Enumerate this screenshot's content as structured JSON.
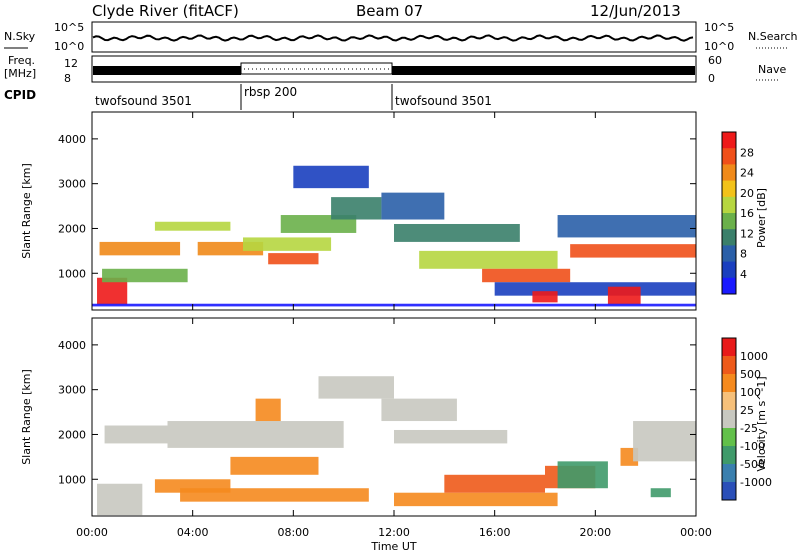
{
  "header": {
    "station": "Clyde River (fitACF)",
    "beam": "Beam 07",
    "date": "12/Jun/2013"
  },
  "strips": {
    "nsky_label": "N.Sky",
    "nsky_ticks": [
      "10^5",
      "10^0"
    ],
    "nsearch_label": "N.Search",
    "nsearch_ticks": [
      "10^5",
      "10^0"
    ],
    "freq_label": "Freq.",
    "freq_unit": "[MHz]",
    "freq_ticks": [
      "12",
      "8"
    ],
    "nave_label": "Nave",
    "nave_ticks": [
      "60",
      "0"
    ],
    "cpid_label": "CPID",
    "cpid_segments": [
      {
        "name": "twofsound 3501",
        "start_h": 0,
        "end_h": 6
      },
      {
        "name": "rbsp 200",
        "start_h": 6,
        "end_h": 12
      },
      {
        "name": "twofsound 3501",
        "start_h": 12,
        "end_h": 24
      }
    ]
  },
  "chart_data": [
    {
      "type": "heatmap",
      "panel": "power",
      "xlabel": "",
      "ylabel": "Slant Range [km]",
      "xlim": [
        0,
        24
      ],
      "ylim": [
        180,
        4600
      ],
      "y_ticks": [
        1000,
        2000,
        3000,
        4000
      ],
      "colorbar_label": "Power [dB]",
      "colorbar_ticks": [
        "28",
        "24",
        "20",
        "16",
        "12",
        "8",
        "4"
      ],
      "colors": [
        "#1a1aff",
        "#1a3fbf",
        "#2a5fa8",
        "#3a7f6a",
        "#6ab04a",
        "#b6d640",
        "#f2c21a",
        "#f08a1a",
        "#f0501a",
        "#ee1a1a"
      ],
      "regions": [
        {
          "x": [
            0.2,
            1.4
          ],
          "y": [
            300,
            900
          ],
          "level": 9
        },
        {
          "x": [
            0.3,
            3.5
          ],
          "y": [
            1400,
            1700
          ],
          "level": 7
        },
        {
          "x": [
            0.4,
            3.8
          ],
          "y": [
            800,
            1100
          ],
          "level": 4
        },
        {
          "x": [
            2.5,
            5.5
          ],
          "y": [
            1950,
            2150
          ],
          "level": 5
        },
        {
          "x": [
            4.2,
            6.8
          ],
          "y": [
            1400,
            1700
          ],
          "level": 7
        },
        {
          "x": [
            6.0,
            9.5
          ],
          "y": [
            1500,
            1800
          ],
          "level": 5
        },
        {
          "x": [
            7.0,
            9.0
          ],
          "y": [
            1200,
            1450
          ],
          "level": 8
        },
        {
          "x": [
            7.5,
            10.5
          ],
          "y": [
            1900,
            2300
          ],
          "level": 4
        },
        {
          "x": [
            9.5,
            11.5
          ],
          "y": [
            2200,
            2700
          ],
          "level": 3
        },
        {
          "x": [
            8.0,
            11.0
          ],
          "y": [
            2900,
            3400
          ],
          "level": 1
        },
        {
          "x": [
            11.5,
            14.0
          ],
          "y": [
            2200,
            2800
          ],
          "level": 2
        },
        {
          "x": [
            12.0,
            17.0
          ],
          "y": [
            1700,
            2100
          ],
          "level": 3
        },
        {
          "x": [
            13.0,
            18.5
          ],
          "y": [
            1100,
            1500
          ],
          "level": 5
        },
        {
          "x": [
            15.5,
            19.0
          ],
          "y": [
            800,
            1100
          ],
          "level": 8
        },
        {
          "x": [
            19.0,
            24.0
          ],
          "y": [
            1350,
            1650
          ],
          "level": 8
        },
        {
          "x": [
            18.5,
            24.0
          ],
          "y": [
            1800,
            2300
          ],
          "level": 2
        },
        {
          "x": [
            16.0,
            24.0
          ],
          "y": [
            500,
            800
          ],
          "level": 1
        },
        {
          "x": [
            17.5,
            18.5
          ],
          "y": [
            350,
            600
          ],
          "level": 9
        },
        {
          "x": [
            20.5,
            21.8
          ],
          "y": [
            300,
            700
          ],
          "level": 9
        },
        {
          "x": [
            0.0,
            24.0
          ],
          "y": [
            260,
            320
          ],
          "level": 0
        }
      ]
    },
    {
      "type": "heatmap",
      "panel": "velocity",
      "xlabel": "Time UT",
      "ylabel": "Slant Range [km]",
      "xlim": [
        0,
        24
      ],
      "ylim": [
        180,
        4600
      ],
      "y_ticks": [
        1000,
        2000,
        3000,
        4000
      ],
      "x_ticks": [
        "00:00",
        "04:00",
        "08:00",
        "12:00",
        "16:00",
        "20:00",
        "00:00"
      ],
      "colorbar_label": "Velocity [m s^-1]",
      "colorbar_ticks": [
        "1000",
        "500",
        "100",
        "25",
        "-25",
        "-100",
        "-500",
        "-1000"
      ],
      "colors": [
        "#2a4fb8",
        "#3a7fae",
        "#3f9a6a",
        "#62c04a",
        "#c8c8c0",
        "#f6c07a",
        "#f58a1e",
        "#ee5a1a",
        "#e81a1a"
      ],
      "regions": [
        {
          "x": [
            0.2,
            2.0
          ],
          "y": [
            200,
            900
          ],
          "level": 4
        },
        {
          "x": [
            0.5,
            3.0
          ],
          "y": [
            1800,
            2200
          ],
          "level": 4
        },
        {
          "x": [
            3.0,
            10.0
          ],
          "y": [
            1700,
            2300
          ],
          "level": 4
        },
        {
          "x": [
            9.0,
            12.0
          ],
          "y": [
            2800,
            3300
          ],
          "level": 4
        },
        {
          "x": [
            2.5,
            5.5
          ],
          "y": [
            700,
            1000
          ],
          "level": 6
        },
        {
          "x": [
            3.5,
            11.0
          ],
          "y": [
            500,
            800
          ],
          "level": 6
        },
        {
          "x": [
            5.5,
            9.0
          ],
          "y": [
            1100,
            1500
          ],
          "level": 6
        },
        {
          "x": [
            6.5,
            7.5
          ],
          "y": [
            2300,
            2800
          ],
          "level": 6
        },
        {
          "x": [
            11.5,
            14.5
          ],
          "y": [
            2300,
            2800
          ],
          "level": 4
        },
        {
          "x": [
            12.0,
            16.5
          ],
          "y": [
            1800,
            2100
          ],
          "level": 4
        },
        {
          "x": [
            12.0,
            18.5
          ],
          "y": [
            400,
            700
          ],
          "level": 6
        },
        {
          "x": [
            14.0,
            18.0
          ],
          "y": [
            700,
            1100
          ],
          "level": 7
        },
        {
          "x": [
            18.0,
            20.0
          ],
          "y": [
            800,
            1300
          ],
          "level": 7
        },
        {
          "x": [
            18.5,
            20.5
          ],
          "y": [
            800,
            1400
          ],
          "level": 2
        },
        {
          "x": [
            21.0,
            21.7
          ],
          "y": [
            1300,
            1700
          ],
          "level": 6
        },
        {
          "x": [
            21.5,
            24.0
          ],
          "y": [
            1400,
            2300
          ],
          "level": 4
        },
        {
          "x": [
            22.2,
            23.0
          ],
          "y": [
            600,
            800
          ],
          "level": 2
        }
      ]
    }
  ]
}
